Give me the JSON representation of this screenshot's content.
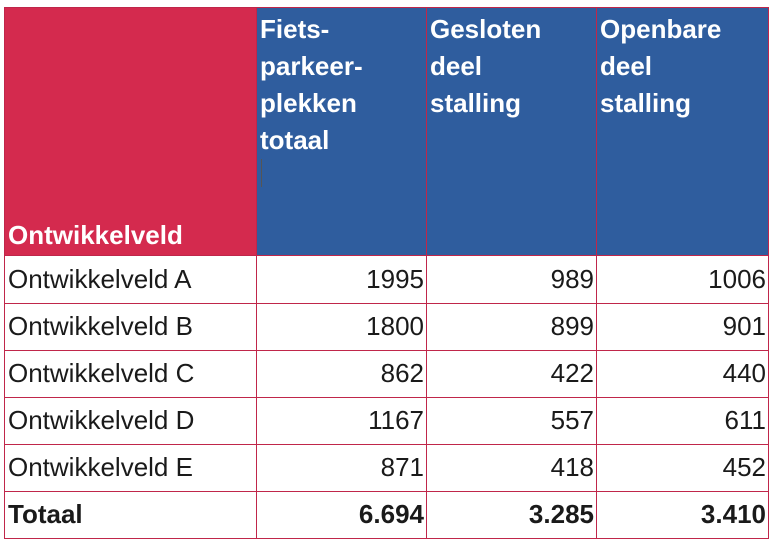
{
  "header": {
    "first": "Ontwikkelveld",
    "col1": [
      "Fiets-",
      "parkeer-",
      "plekken",
      "totaal"
    ],
    "col2": [
      "Gesloten",
      "deel",
      "stalling"
    ],
    "col3": [
      "Openbare",
      "deel",
      "stalling"
    ]
  },
  "rows": [
    {
      "name": "Ontwikkelveld A",
      "total": "1995",
      "closed": "989",
      "open": "1006"
    },
    {
      "name": "Ontwikkelveld B",
      "total": "1800",
      "closed": "899",
      "open": "901"
    },
    {
      "name": "Ontwikkelveld C",
      "total": "862",
      "closed": "422",
      "open": "440"
    },
    {
      "name": "Ontwikkelveld D",
      "total": "1167",
      "closed": "557",
      "open": "611"
    },
    {
      "name": "Ontwikkelveld E",
      "total": "871",
      "closed": "418",
      "open": "452"
    }
  ],
  "footer": {
    "name": "Totaal",
    "total": "6.694",
    "closed": "3.285",
    "open": "3.410"
  },
  "colors": {
    "header_red": "#d42a4e",
    "header_blue": "#2f5d9e",
    "border": "#c0264a"
  }
}
